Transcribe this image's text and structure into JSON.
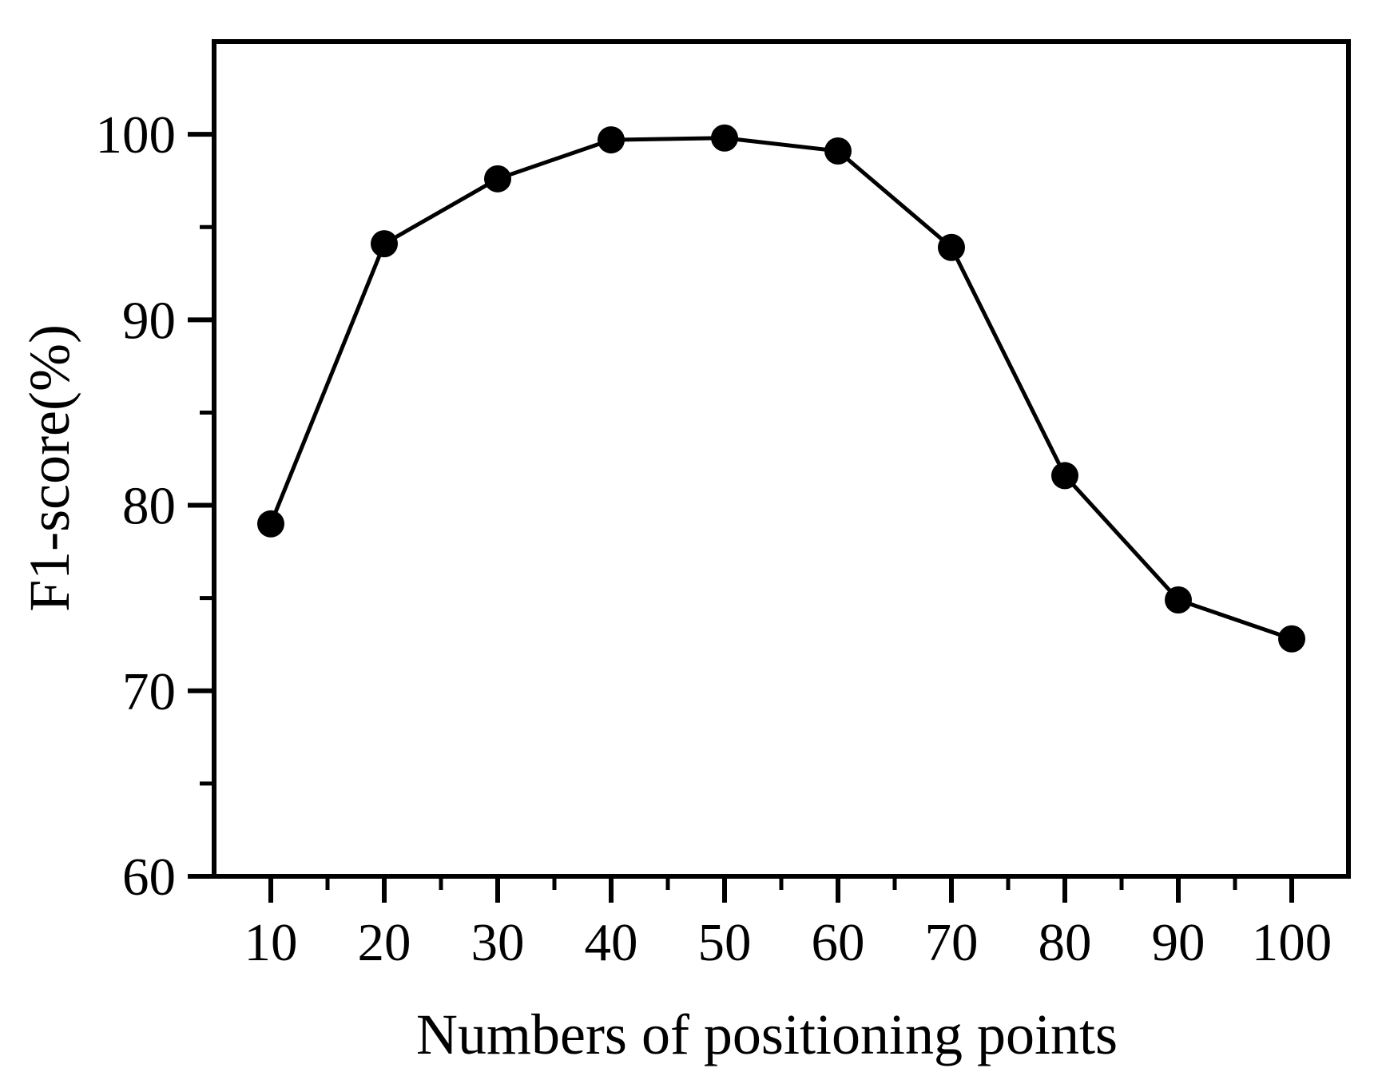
{
  "figure": {
    "background_color": "#ffffff",
    "ink_color": "#000000"
  },
  "chart_data": {
    "type": "line",
    "title": "",
    "xlabel": "Numbers of positioning points",
    "ylabel": "F1-score(%)",
    "series": [
      {
        "name": "F1-score",
        "x": [
          10,
          20,
          30,
          40,
          50,
          60,
          70,
          80,
          90,
          100
        ],
        "y": [
          79.0,
          94.1,
          97.6,
          99.7,
          99.8,
          99.1,
          93.9,
          81.6,
          74.9,
          72.8
        ],
        "line_color": "#000000",
        "marker": "filled-circle",
        "marker_color": "#000000"
      }
    ],
    "xlim": [
      5,
      105
    ],
    "ylim": [
      60,
      105
    ],
    "x_major_ticks": [
      10,
      20,
      30,
      40,
      50,
      60,
      70,
      80,
      90,
      100
    ],
    "x_major_tick_labels": [
      "10",
      "20",
      "30",
      "40",
      "50",
      "60",
      "70",
      "80",
      "90",
      "100"
    ],
    "x_minor_ticks": [
      15,
      25,
      35,
      45,
      55,
      65,
      75,
      85,
      95
    ],
    "y_major_ticks": [
      60,
      70,
      80,
      90,
      100
    ],
    "y_major_tick_labels": [
      "60",
      "70",
      "80",
      "90",
      "100"
    ],
    "y_minor_ticks": [
      65,
      75,
      85,
      95
    ],
    "tick_direction": "out",
    "grid": "off",
    "legend": "none",
    "frame": "box"
  }
}
